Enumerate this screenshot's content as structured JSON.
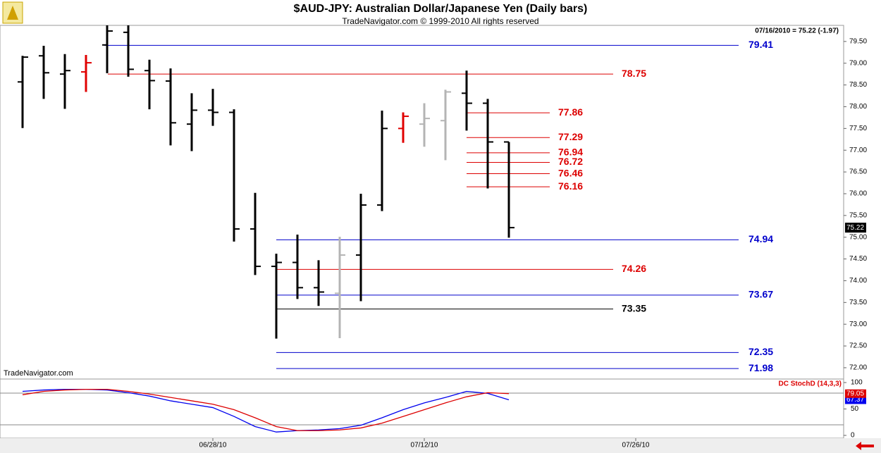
{
  "chart_data": {
    "type": "ohlc",
    "title": "$AUD-JPY:  Australian Dollar/Japanese Yen  (Daily bars)",
    "subtitle": "TradeNavigator.com © 1999-2010 All rights reserved",
    "info": "07/16/2010 = 75.22 (-1.97)",
    "watermark": "TradeNavigator.com",
    "last_label": "75.22",
    "last_value": 75.22,
    "categories": [
      null,
      null,
      null,
      null,
      null,
      null,
      null,
      null,
      null,
      "06/28/10",
      null,
      null,
      null,
      null,
      null,
      null,
      null,
      null,
      null,
      "07/12/10",
      null,
      null,
      null,
      null,
      null,
      null,
      null,
      null,
      null,
      "07/26/10",
      null,
      null,
      null,
      null,
      null,
      null,
      null,
      null,
      null
    ],
    "bars": [
      {
        "open": 78.57,
        "high": 79.17,
        "low": 77.51,
        "close": 79.14,
        "color": "#000000"
      },
      {
        "open": 79.17,
        "high": 79.4,
        "low": 78.18,
        "close": 78.78,
        "color": "#000000"
      },
      {
        "open": 78.75,
        "high": 79.21,
        "low": 77.95,
        "close": 78.83,
        "color": "#000000"
      },
      {
        "open": 78.8,
        "high": 79.19,
        "low": 78.34,
        "close": 79.01,
        "color": "#e00000"
      },
      {
        "open": 79.42,
        "high": 79.87,
        "low": 78.77,
        "close": 79.74,
        "color": "#000000"
      },
      {
        "open": 79.71,
        "high": 79.87,
        "low": 78.69,
        "close": 78.86,
        "color": "#000000"
      },
      {
        "open": 78.83,
        "high": 79.08,
        "low": 77.94,
        "close": 78.6,
        "color": "#000000"
      },
      {
        "open": 78.59,
        "high": 78.88,
        "low": 77.11,
        "close": 77.63,
        "color": "#000000"
      },
      {
        "open": 77.6,
        "high": 78.31,
        "low": 76.98,
        "close": 77.92,
        "color": "#000000"
      },
      {
        "open": 77.92,
        "high": 78.41,
        "low": 77.56,
        "close": 77.87,
        "color": "#000000"
      },
      {
        "open": 77.87,
        "high": 77.94,
        "low": 74.9,
        "close": 75.19,
        "color": "#000000"
      },
      {
        "open": 75.19,
        "high": 76.02,
        "low": 74.13,
        "close": 74.33,
        "color": "#000000"
      },
      {
        "open": 74.33,
        "high": 74.62,
        "low": 72.67,
        "close": 74.42,
        "color": "#000000"
      },
      {
        "open": 74.42,
        "high": 75.06,
        "low": 73.58,
        "close": 73.84,
        "color": "#000000"
      },
      {
        "open": 73.84,
        "high": 74.47,
        "low": 73.42,
        "close": 73.74,
        "color": "#000000"
      },
      {
        "open": 73.71,
        "high": 75.01,
        "low": 72.68,
        "close": 74.59,
        "color": "#b4b4b4"
      },
      {
        "open": 74.59,
        "high": 76.0,
        "low": 73.53,
        "close": 75.74,
        "color": "#000000"
      },
      {
        "open": 75.74,
        "high": 77.91,
        "low": 75.6,
        "close": 77.5,
        "color": "#000000"
      },
      {
        "open": 77.5,
        "high": 77.87,
        "low": 77.17,
        "close": 77.78,
        "color": "#e00000"
      },
      {
        "open": 77.6,
        "high": 78.08,
        "low": 77.08,
        "close": 77.73,
        "color": "#b4b4b4"
      },
      {
        "open": 77.68,
        "high": 78.39,
        "low": 76.77,
        "close": 78.34,
        "color": "#b4b4b4"
      },
      {
        "open": 78.31,
        "high": 78.83,
        "low": 77.45,
        "close": 78.08,
        "color": "#000000"
      },
      {
        "open": 78.08,
        "high": 78.18,
        "low": 76.12,
        "close": 77.19,
        "color": "#000000"
      },
      {
        "open": 77.19,
        "high": 77.19,
        "low": 74.99,
        "close": 75.22,
        "color": "#000000"
      }
    ],
    "ylim": [
      71.74,
      79.87
    ],
    "yticks": [
      {
        "value": 72,
        "label": "72.00"
      },
      {
        "value": 72.5,
        "label": "72.50"
      },
      {
        "value": 73,
        "label": "73.00"
      },
      {
        "value": 73.5,
        "label": "73.50"
      },
      {
        "value": 74,
        "label": "74.00"
      },
      {
        "value": 74.5,
        "label": "74.50"
      },
      {
        "value": 75,
        "label": "75.00"
      },
      {
        "value": 75.5,
        "label": "75.50"
      },
      {
        "value": 76,
        "label": "76.00"
      },
      {
        "value": 76.5,
        "label": "76.50"
      },
      {
        "value": 77,
        "label": "77.00"
      },
      {
        "value": 77.5,
        "label": "77.50"
      },
      {
        "value": 78,
        "label": "78.00"
      },
      {
        "value": 78.5,
        "label": "78.50"
      },
      {
        "value": 79,
        "label": "79.00"
      },
      {
        "value": 79.5,
        "label": "79.50"
      }
    ],
    "hlines": [
      {
        "value": 79.41,
        "label": "79.41",
        "color": "#0000cc"
      },
      {
        "value": 78.75,
        "label": "78.75",
        "color": "#dd0000"
      },
      {
        "value": 77.86,
        "label": "77.86",
        "color": "#dd0000"
      },
      {
        "value": 77.29,
        "label": "77.29",
        "color": "#dd0000"
      },
      {
        "value": 76.94,
        "label": "76.94",
        "color": "#dd0000"
      },
      {
        "value": 76.72,
        "label": "76.72",
        "color": "#dd0000"
      },
      {
        "value": 76.46,
        "label": "76.46",
        "color": "#dd0000"
      },
      {
        "value": 76.16,
        "label": "76.16",
        "color": "#dd0000"
      },
      {
        "value": 74.94,
        "label": "74.94",
        "color": "#0000cc"
      },
      {
        "value": 74.26,
        "label": "74.26",
        "color": "#dd0000"
      },
      {
        "value": 73.67,
        "label": "73.67",
        "color": "#0000cc"
      },
      {
        "value": 73.35,
        "label": "73.35",
        "color": "#000000"
      },
      {
        "value": 72.35,
        "label": "72.35",
        "color": "#0000cc"
      },
      {
        "value": 71.98,
        "label": "71.98",
        "color": "#0000cc"
      }
    ],
    "indicator": {
      "name": "DC StochD (14,3,3)",
      "ylim": [
        0,
        100
      ],
      "yticks": [
        0,
        50,
        100
      ],
      "hlines": [
        80,
        20
      ],
      "series": [
        {
          "color": "#0000ee",
          "last_label": "67.37",
          "values": [
            83.3,
            85.9,
            87.2,
            87.2,
            85.9,
            80.8,
            74.4,
            65.4,
            59,
            52.6,
            35.9,
            16.7,
            6.4,
            9,
            10.3,
            12.8,
            19.2,
            33.3,
            48.7,
            61.5,
            71.8,
            83.3,
            79.5,
            67.37
          ]
        },
        {
          "color": "#dd0000",
          "last_label": "79.05",
          "values": [
            76.9,
            83.3,
            85.9,
            87.2,
            87.2,
            83.3,
            78.2,
            71.8,
            65.4,
            59,
            48.7,
            33.3,
            16.7,
            9,
            9,
            10.3,
            14.1,
            23.1,
            35.9,
            48.7,
            61.5,
            73.1,
            80.8,
            79.05
          ]
        }
      ]
    }
  }
}
